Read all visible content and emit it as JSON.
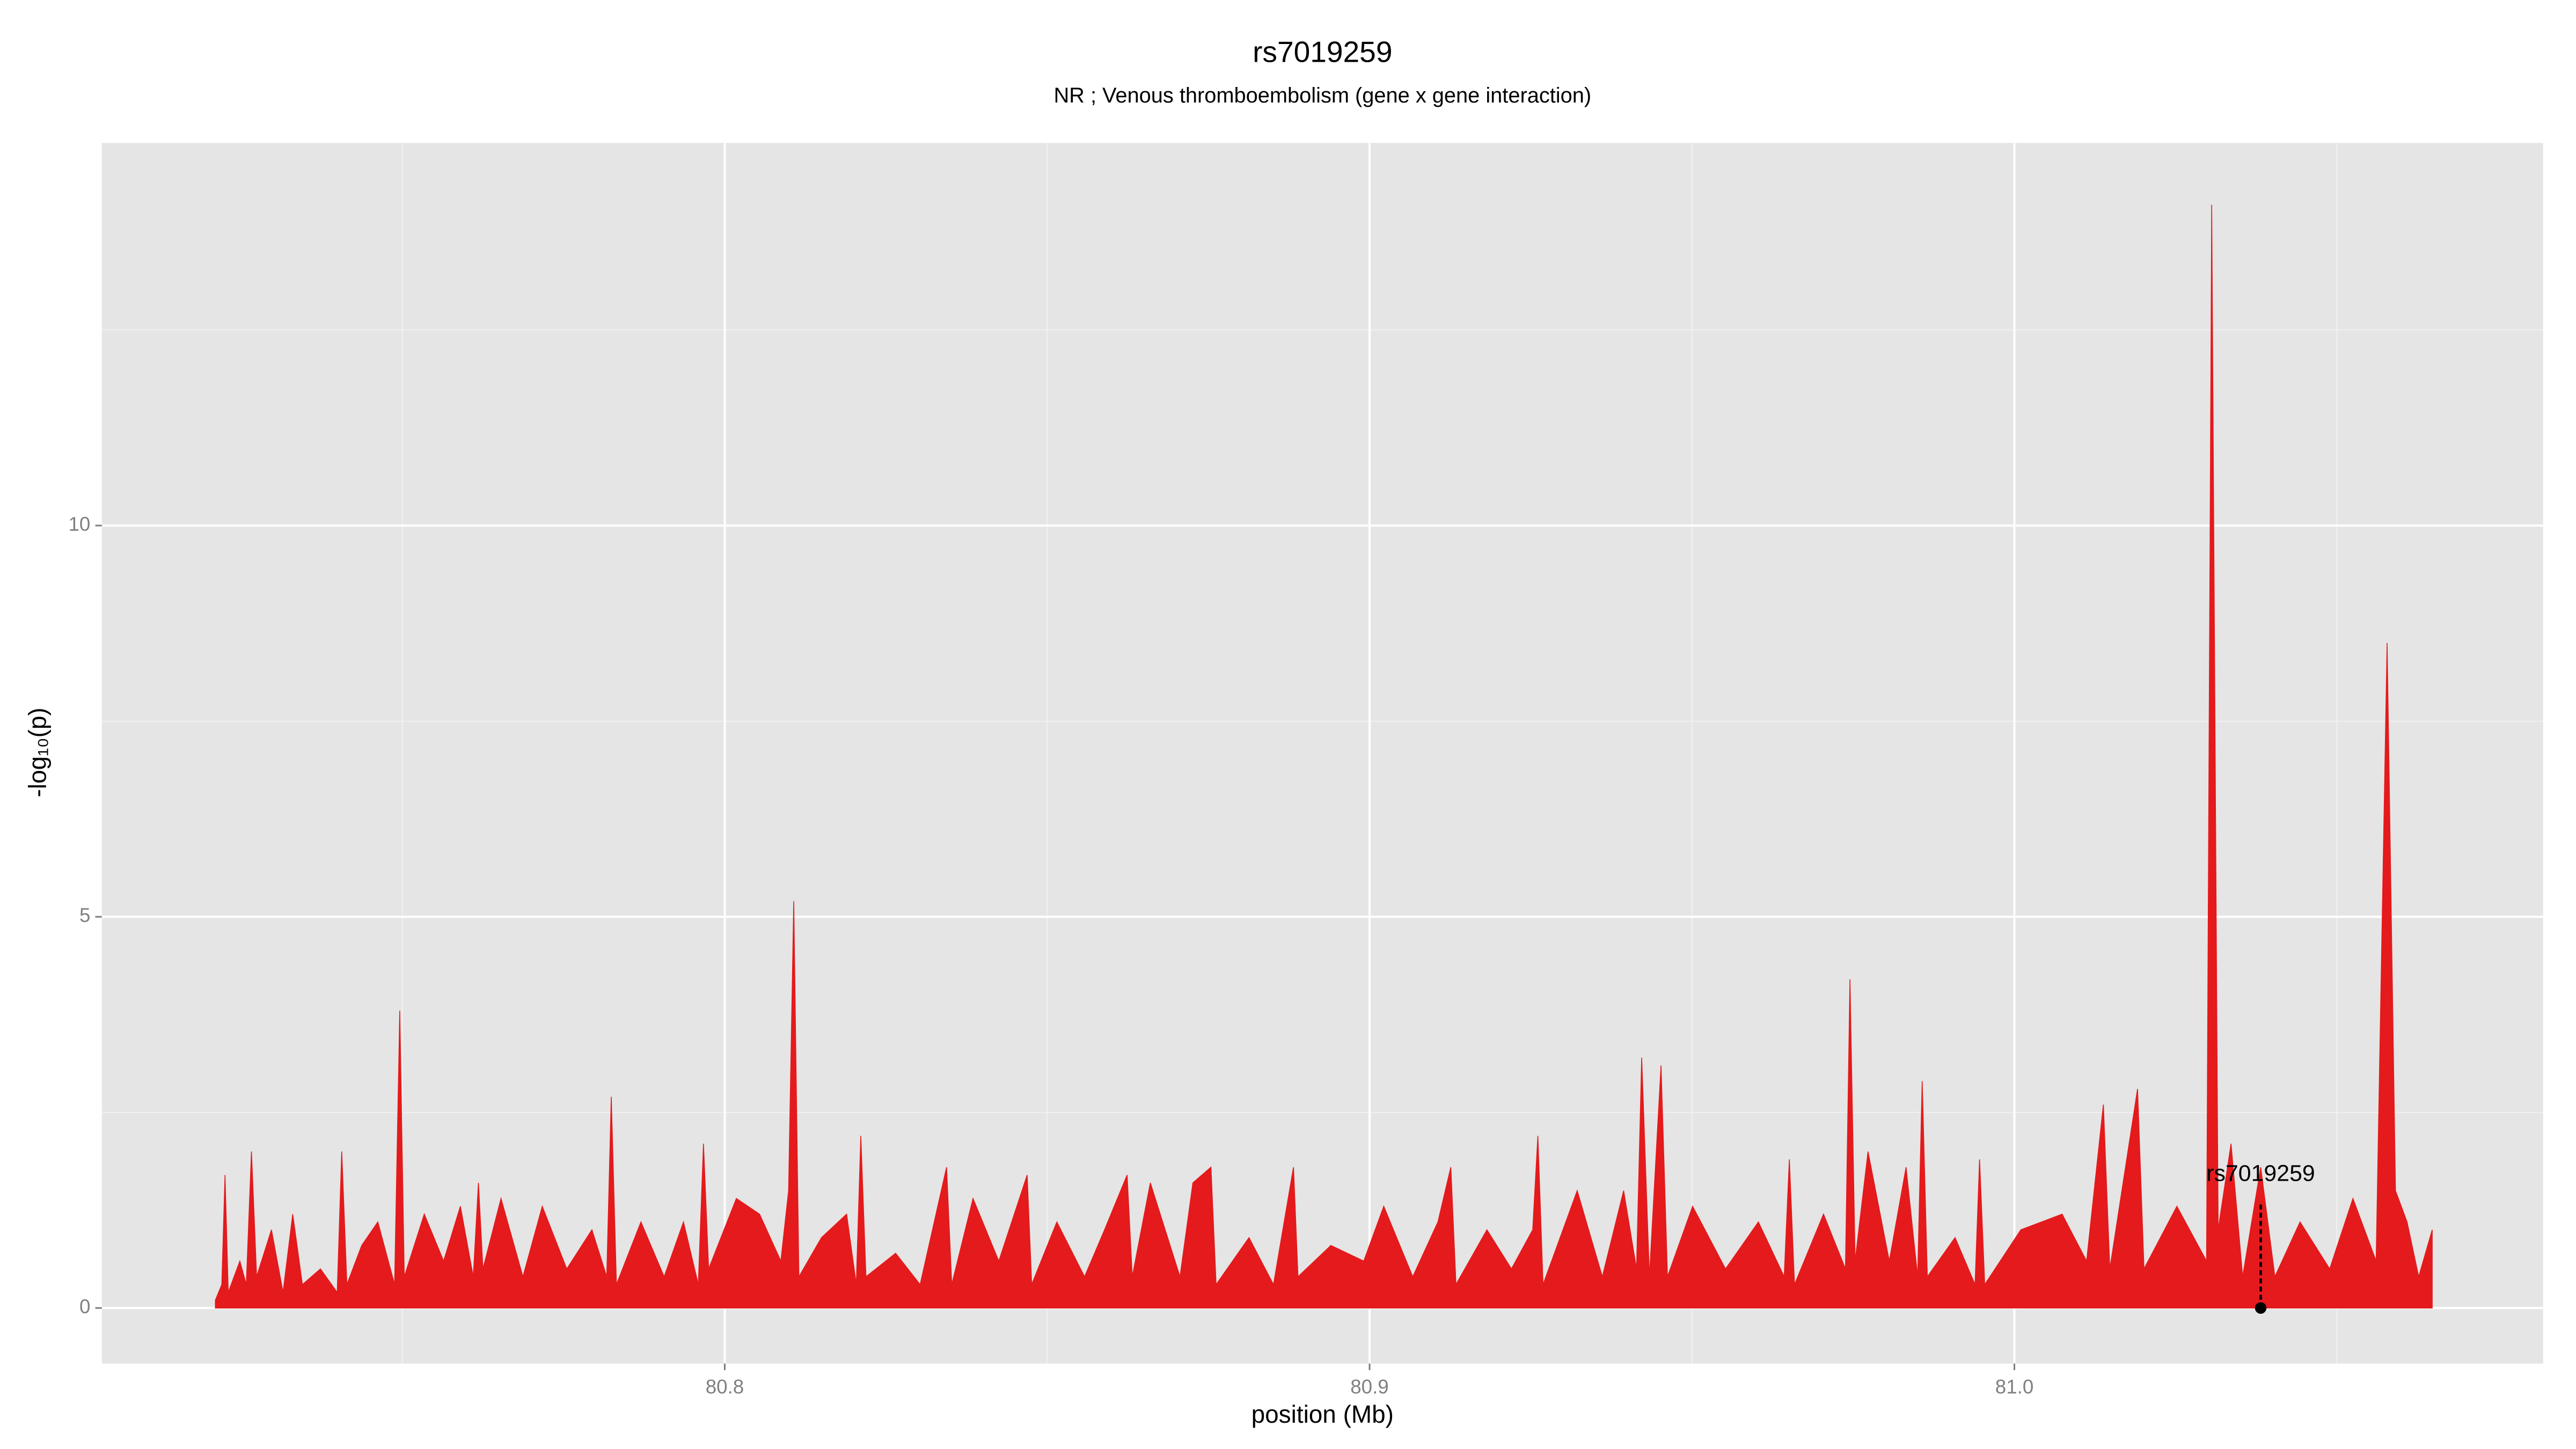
{
  "chart_data": {
    "type": "area",
    "title": "rs7019259",
    "subtitle": "NR ; Venous thromboembolism (gene x gene interaction)",
    "x_label": "position (Mb)",
    "y_label": "-log₁₀(p)",
    "xlim": [
      80.7034,
      81.082
    ],
    "ylim": [
      -0.71,
      14.89
    ],
    "xticks": [
      80.8,
      80.9,
      {
        "value": 81,
        "label": "81.0"
      }
    ],
    "yticks": [
      0,
      5,
      10
    ],
    "xminor": [
      80.75,
      80.85,
      80.95,
      81.05
    ],
    "yminor": [
      2.5,
      7.5,
      12.5
    ],
    "grid": true,
    "x": [
      80.721,
      80.722,
      80.7225,
      80.723,
      80.7248,
      80.7258,
      80.7266,
      80.7274,
      80.7297,
      80.7315,
      80.733,
      80.7345,
      80.7373,
      80.7399,
      80.7406,
      80.7414,
      80.7437,
      80.7462,
      80.7488,
      80.7496,
      80.7503,
      80.7534,
      80.7564,
      80.759,
      80.761,
      80.7618,
      80.7625,
      80.7653,
      80.7687,
      80.7717,
      80.7755,
      80.7794,
      80.7817,
      80.7824,
      80.7832,
      80.787,
      80.7906,
      80.7936,
      80.7959,
      80.7967,
      80.7975,
      80.8018,
      80.8054,
      80.8087,
      80.8099,
      80.8107,
      80.8115,
      80.815,
      80.8189,
      80.8204,
      80.8211,
      80.8219,
      80.8265,
      80.8303,
      80.8344,
      80.8352,
      80.8385,
      80.8425,
      80.8469,
      80.8476,
      80.8515,
      80.8558,
      80.8589,
      80.8624,
      80.8632,
      80.866,
      80.8706,
      80.8726,
      80.8754,
      80.8762,
      80.8813,
      80.8851,
      80.8882,
      80.8889,
      80.894,
      80.8991,
      80.9022,
      80.9067,
      80.9106,
      80.9126,
      80.9134,
      80.9182,
      80.922,
      80.9253,
      80.9261,
      80.9269,
      80.9322,
      80.9361,
      80.9394,
      80.9414,
      80.9422,
      80.9434,
      80.9452,
      80.9462,
      80.9501,
      80.9552,
      80.9603,
      80.9643,
      80.9651,
      80.9659,
      80.9704,
      80.9738,
      80.9745,
      80.9753,
      80.9773,
      80.9806,
      80.9832,
      80.985,
      80.9857,
      80.9865,
      80.9908,
      80.9939,
      80.9946,
      80.9954,
      81.001,
      81.0074,
      81.0112,
      81.0138,
      81.0148,
      81.0191,
      81.0201,
      81.0252,
      81.0298,
      81.0306,
      81.0316,
      81.0336,
      81.0354,
      81.0382,
      81.0404,
      81.0443,
      81.0489,
      81.0525,
      81.0561,
      81.0578,
      81.0591,
      81.0609,
      81.0627,
      81.0648
    ],
    "series": [
      {
        "color": "#e41a1c",
        "values": [
          0.1,
          0.3,
          1.7,
          0.2,
          0.6,
          0.3,
          2.0,
          0.4,
          1.0,
          0.2,
          1.2,
          0.3,
          0.5,
          0.2,
          2.0,
          0.3,
          0.8,
          1.1,
          0.3,
          3.8,
          0.4,
          1.2,
          0.6,
          1.3,
          0.4,
          1.6,
          0.5,
          1.4,
          0.4,
          1.3,
          0.5,
          1.0,
          0.4,
          2.7,
          0.3,
          1.1,
          0.4,
          1.1,
          0.3,
          2.1,
          0.5,
          1.4,
          1.2,
          0.6,
          1.5,
          5.2,
          0.4,
          0.9,
          1.2,
          0.3,
          2.2,
          0.4,
          0.7,
          0.3,
          1.8,
          0.3,
          1.4,
          0.6,
          1.7,
          0.3,
          1.1,
          0.4,
          1.0,
          1.7,
          0.4,
          1.6,
          0.4,
          1.6,
          1.8,
          0.3,
          0.9,
          0.3,
          1.8,
          0.4,
          0.8,
          0.6,
          1.3,
          0.4,
          1.1,
          1.8,
          0.3,
          1.0,
          0.5,
          1.0,
          2.2,
          0.3,
          1.5,
          0.4,
          1.5,
          0.5,
          3.2,
          0.4,
          3.1,
          0.4,
          1.3,
          0.5,
          1.1,
          0.4,
          1.9,
          0.3,
          1.2,
          0.5,
          4.2,
          0.6,
          2.0,
          0.6,
          1.8,
          0.4,
          2.9,
          0.4,
          0.9,
          0.3,
          1.9,
          0.3,
          1.0,
          1.2,
          0.6,
          2.6,
          0.5,
          2.8,
          0.5,
          1.3,
          0.6,
          14.1,
          1.0,
          2.1,
          0.4,
          1.8,
          0.4,
          1.1,
          0.5,
          1.4,
          0.6,
          8.5,
          1.5,
          1.1,
          0.4,
          1.0
        ]
      }
    ],
    "annotations": [
      {
        "text": "rs7019259",
        "x": 81.0382,
        "y": 0,
        "label_y": 1.7
      }
    ]
  }
}
